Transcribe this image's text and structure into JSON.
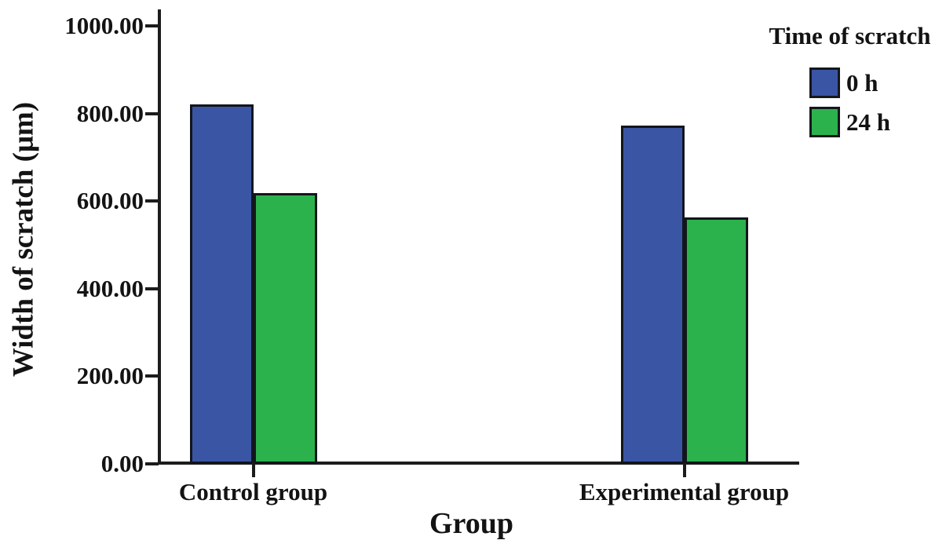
{
  "chart_data": {
    "type": "bar",
    "xlabel": "Group",
    "ylabel": "Width of scratch (μm)",
    "categories": [
      "Control group",
      "Experimental group"
    ],
    "series": [
      {
        "name": "0 h",
        "color": "#3B55A5",
        "values": [
          820,
          772
        ]
      },
      {
        "name": "24 h",
        "color": "#2CB24C",
        "values": [
          618,
          562
        ]
      }
    ],
    "ylim": [
      0,
      1000
    ],
    "yticks": [
      0,
      200,
      400,
      600,
      800,
      1000
    ],
    "ytick_labels": [
      "0.00",
      "200.00",
      "400.00",
      "600.00",
      "800.00",
      "1000.00"
    ],
    "legend_title": "Time of scratch",
    "legend_position": "top-right",
    "grid": false,
    "background": "#ffffff",
    "axis_color": "#1c1c1c",
    "bar_border_color": "#12161c",
    "text_color": "#131313"
  }
}
